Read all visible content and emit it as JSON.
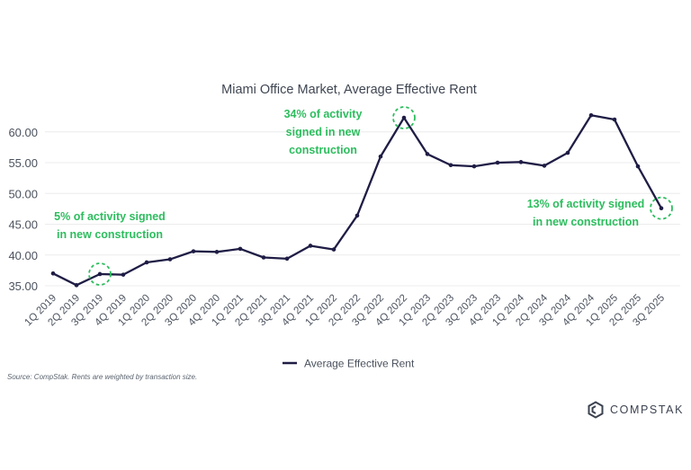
{
  "chart_data": {
    "type": "line",
    "title": "Miami Office Market, Average Effective Rent",
    "xlabel": "",
    "ylabel": "",
    "categories": [
      "1Q 2019",
      "2Q 2019",
      "3Q 2019",
      "4Q 2019",
      "1Q 2020",
      "2Q 2020",
      "3Q 2020",
      "4Q 2020",
      "1Q 2021",
      "2Q 2021",
      "3Q 2021",
      "4Q 2021",
      "1Q 2022",
      "2Q 2022",
      "3Q 2022",
      "4Q 2022",
      "1Q 2023",
      "2Q 2023",
      "3Q 2023",
      "4Q 2023",
      "1Q 2024",
      "2Q 2024",
      "3Q 2024",
      "4Q 2024",
      "1Q 2025",
      "2Q 2025",
      "3Q 2025"
    ],
    "series": [
      {
        "name": "Average Effective Rent",
        "color": "#1f1d45",
        "values": [
          37.0,
          35.1,
          36.9,
          36.8,
          38.8,
          39.3,
          40.6,
          40.5,
          41.0,
          39.6,
          39.4,
          41.5,
          40.9,
          46.4,
          56.0,
          62.3,
          56.4,
          54.6,
          54.4,
          55.0,
          55.1,
          54.5,
          56.6,
          62.7,
          62.0,
          54.4,
          47.6
        ]
      }
    ],
    "yticks": [
      "35.00",
      "40.00",
      "45.00",
      "50.00",
      "55.00",
      "60.00"
    ],
    "ylim": [
      33,
      65
    ],
    "grid": true,
    "legend": "bottom",
    "annotations": [
      {
        "lines": [
          "5% of activity signed",
          "in new construction"
        ],
        "category": "3Q 2019",
        "color": "#2dbd5e"
      },
      {
        "lines": [
          "34% of activity",
          "signed in new",
          "construction"
        ],
        "category": "4Q 2022",
        "color": "#2dbd5e"
      },
      {
        "lines": [
          "13% of activity signed",
          "in new construction"
        ],
        "category": "3Q 2025",
        "color": "#2dbd5e"
      }
    ]
  },
  "source_note": "Source: CompStak. Rents are weighted by transaction size.",
  "brand": {
    "name": "COMPSTAK",
    "icon": "compstak-logo-icon"
  }
}
